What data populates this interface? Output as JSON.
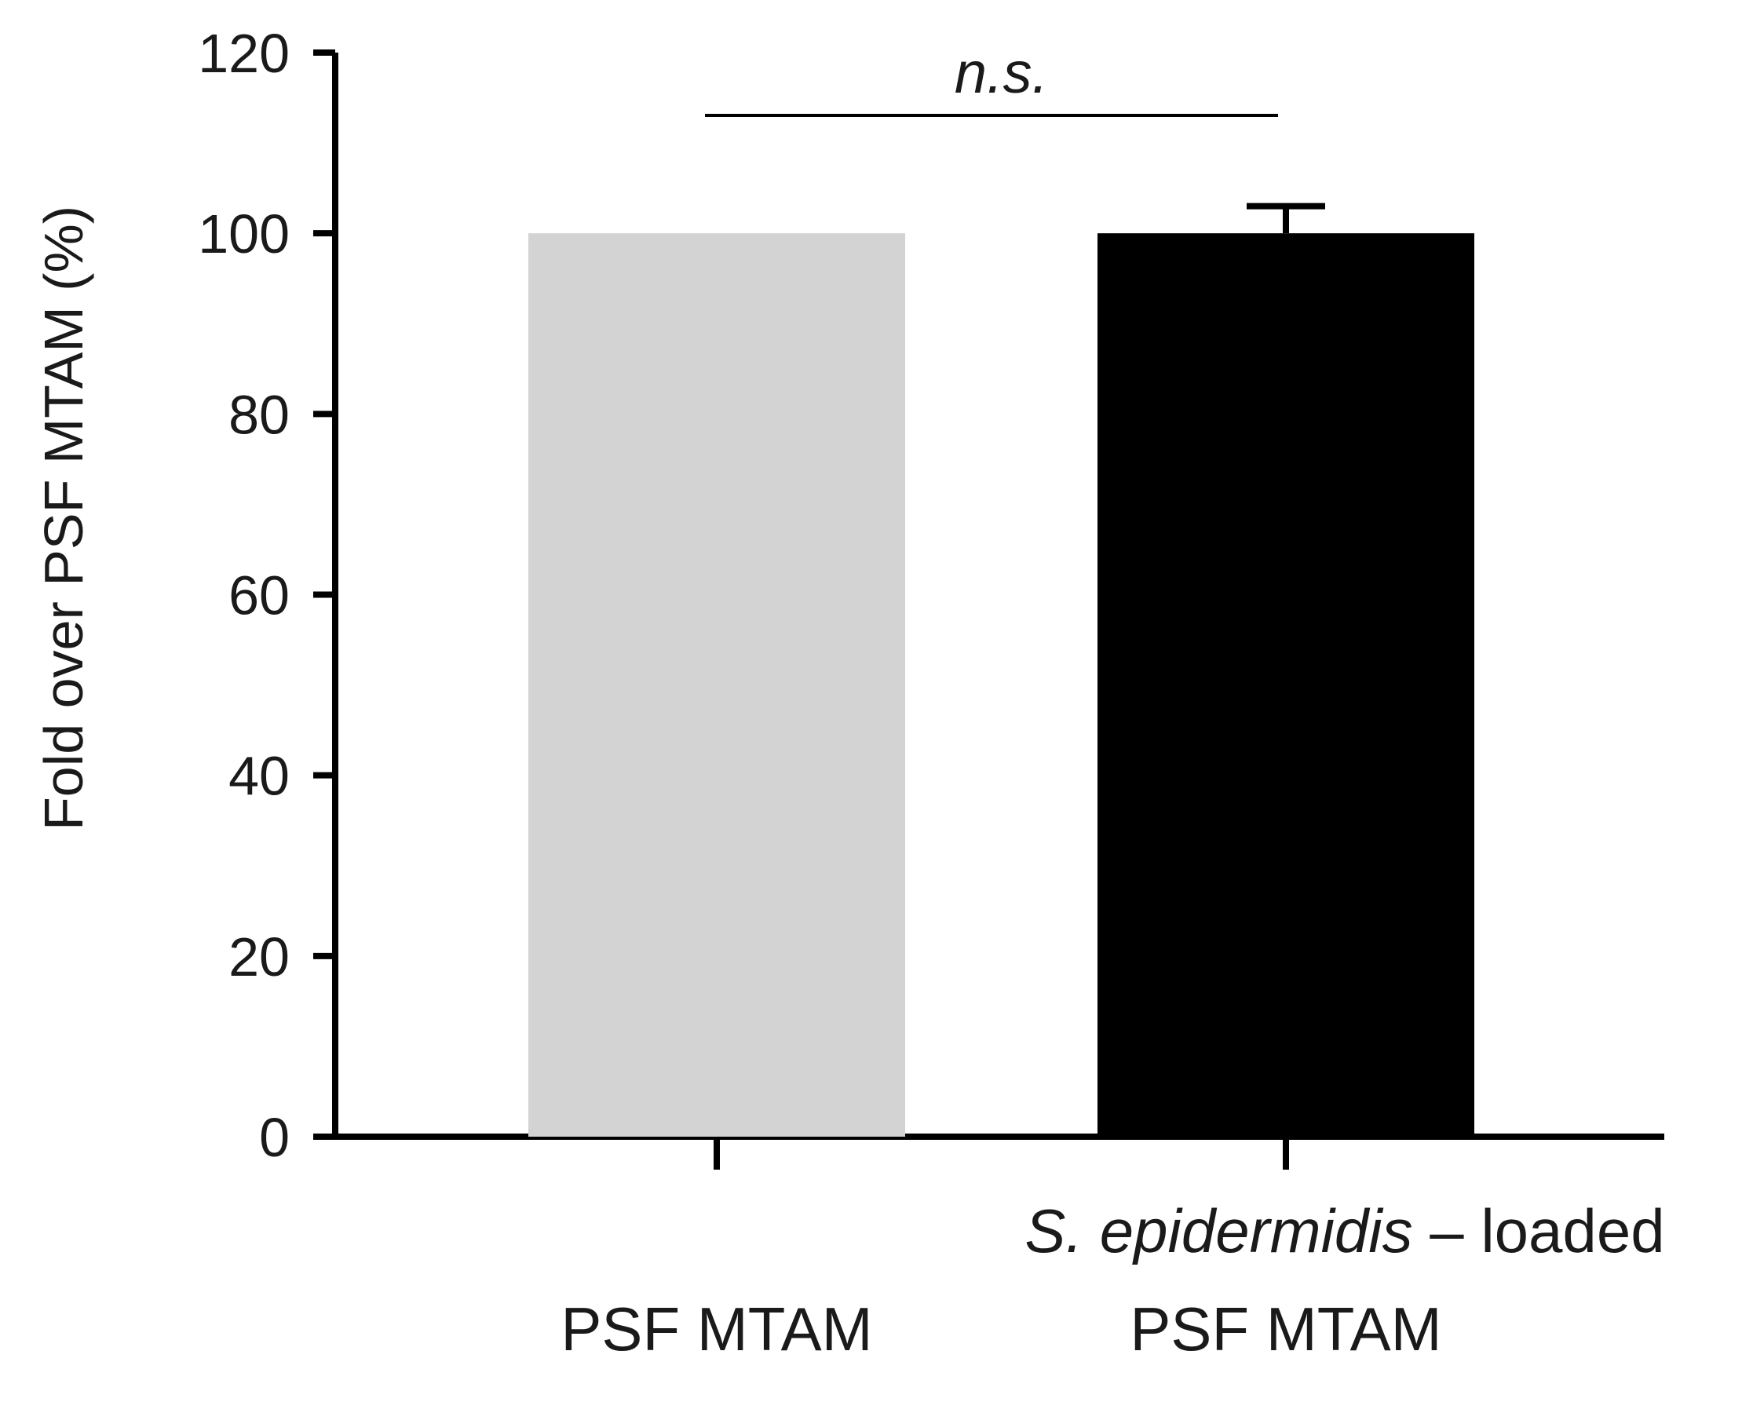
{
  "chart_data": {
    "type": "bar",
    "ylabel": "Fold over PSF MTAM (%)",
    "xlabel": "",
    "ylim": [
      0,
      120
    ],
    "yticks": [
      0,
      20,
      40,
      60,
      80,
      100,
      120
    ],
    "grid": false,
    "categories": [
      {
        "lines": [
          {
            "italic": "",
            "plain": "PSF MTAM"
          }
        ]
      },
      {
        "lines": [
          {
            "italic": "S. epidermidis",
            "plain": " – loaded"
          },
          {
            "italic": "",
            "plain": "PSF MTAM"
          }
        ]
      }
    ],
    "values": [
      100,
      100
    ],
    "errors": [
      0,
      3
    ],
    "bar_colors": [
      "#d3d3d3",
      "#000000"
    ],
    "significance": {
      "label": "n.s.",
      "between": [
        0,
        1
      ]
    }
  }
}
